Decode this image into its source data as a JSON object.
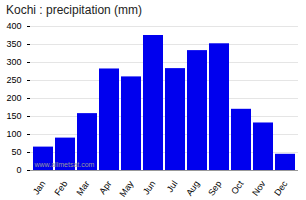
{
  "chart_data": {
    "type": "bar",
    "title": "Kochi : precipitation (mm)",
    "categories": [
      "Jan",
      "Feb",
      "Mar",
      "Apr",
      "May",
      "Jun",
      "Jul",
      "Aug",
      "Sep",
      "Oct",
      "Nov",
      "Dec"
    ],
    "values": [
      65,
      90,
      158,
      282,
      260,
      375,
      283,
      333,
      352,
      170,
      132,
      45
    ],
    "color": "#0000ee",
    "ylim": [
      0,
      400
    ],
    "yticks": [
      0,
      50,
      100,
      150,
      200,
      250,
      300,
      350,
      400
    ],
    "grid": true,
    "annotations": [
      "www.allmetsat.com"
    ]
  }
}
